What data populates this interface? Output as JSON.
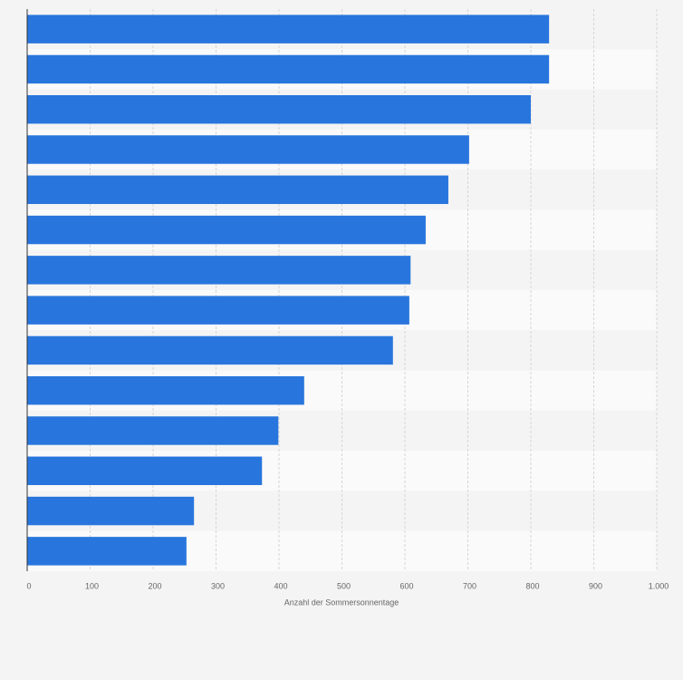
{
  "chart_data": {
    "type": "barh",
    "categories": [
      null,
      null,
      null,
      null,
      null,
      null,
      null,
      null,
      null,
      null,
      null,
      null,
      null,
      null
    ],
    "values": [
      829,
      829,
      800,
      702,
      669,
      633,
      609,
      607,
      581,
      440,
      399,
      373,
      265,
      253
    ],
    "color": "#2876dd",
    "xlabel": "Anzahl der Sommersonnentage",
    "xlim": [
      0,
      1000
    ],
    "xticks": [
      0,
      100,
      200,
      300,
      400,
      500,
      600,
      700,
      800,
      900,
      {
        "value": 1000,
        "label": "1.000"
      }
    ],
    "grid": true
  }
}
